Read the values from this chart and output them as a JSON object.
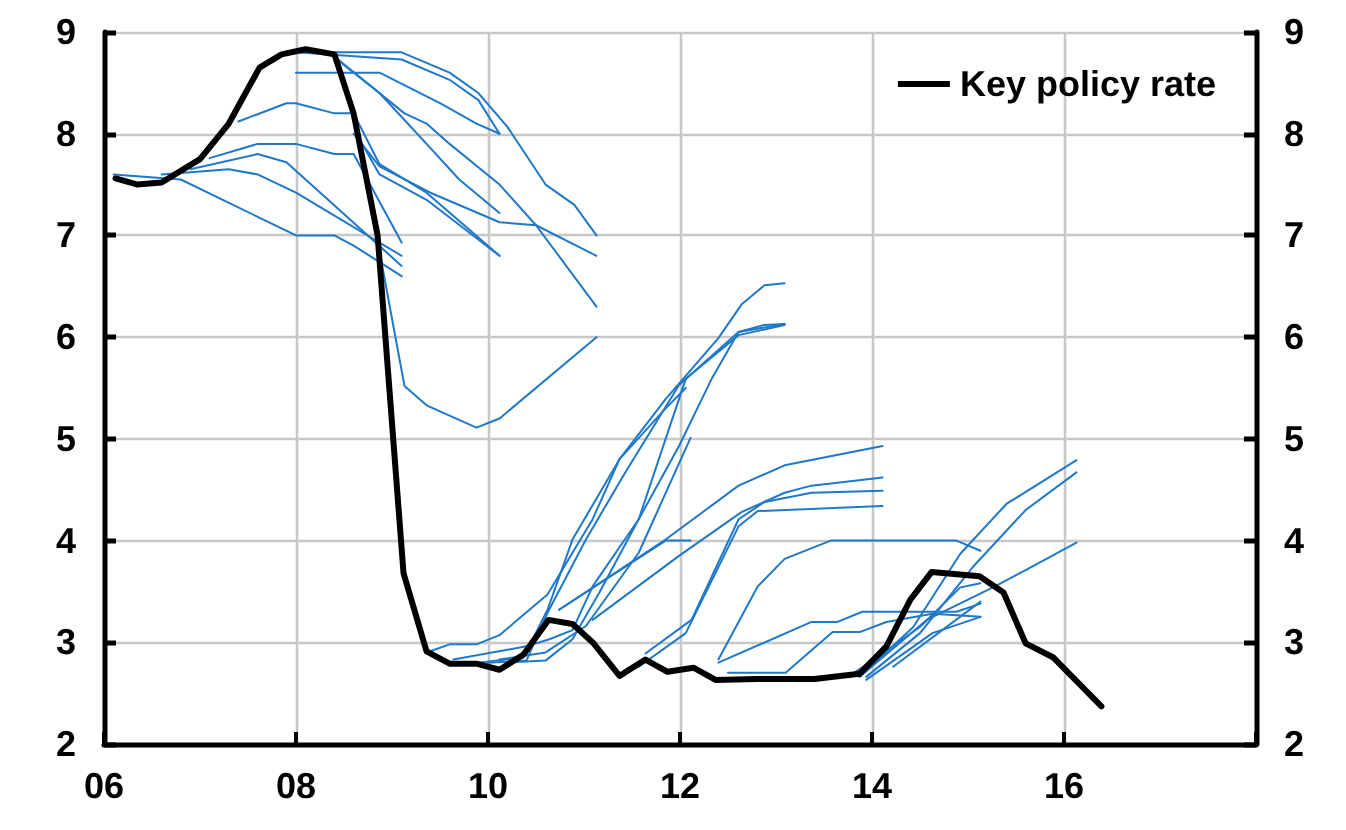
{
  "chart_data": {
    "type": "line",
    "xlim": [
      2006,
      2018
    ],
    "xticks": [
      {
        "value": 2006,
        "label": "06"
      },
      {
        "value": 2008,
        "label": "08"
      },
      {
        "value": 2010,
        "label": "10"
      },
      {
        "value": 2012,
        "label": "12"
      },
      {
        "value": 2014,
        "label": "14"
      },
      {
        "value": 2016,
        "label": "16"
      },
      {
        "value": 2018,
        "label": null
      }
    ],
    "ylim": [
      2,
      9
    ],
    "yticks": [
      2,
      3,
      4,
      5,
      6,
      7,
      8,
      9
    ],
    "y2lim": [
      2,
      9
    ],
    "y2ticks": [
      2,
      3,
      4,
      5,
      6,
      7,
      8,
      9
    ],
    "grid": true,
    "legend": "top right",
    "marker": "none",
    "line_style": "solid",
    "series": [
      {
        "color": "#1f78c8",
        "x": [
          2006.1,
          2006.8,
          2008.0,
          2008.4,
          2008.6,
          2009.1
        ],
        "values": [
          7.6,
          7.55,
          7.0,
          7.0,
          6.9,
          6.6
        ]
      },
      {
        "color": "#1f78c8",
        "x": [
          2006.6,
          2007.3,
          2007.6,
          2008.0,
          2009.1
        ],
        "values": [
          7.6,
          7.65,
          7.6,
          7.42,
          6.8
        ]
      },
      {
        "color": "#1f78c8",
        "x": [
          2006.9,
          2007.6,
          2007.9,
          2009.1
        ],
        "values": [
          7.65,
          7.8,
          7.72,
          6.7
        ]
      },
      {
        "color": "#1f78c8",
        "x": [
          2007.1,
          2007.6,
          2008.0,
          2008.4,
          2008.6,
          2009.1
        ],
        "values": [
          7.76,
          7.9,
          7.9,
          7.8,
          7.8,
          6.93
        ]
      },
      {
        "color": "#1f78c8",
        "x": [
          2007.4,
          2007.9,
          2008.0,
          2008.4,
          2008.6,
          2008.87,
          2009.36,
          2010.12
        ],
        "values": [
          8.12,
          8.3,
          8.3,
          8.2,
          8.2,
          7.7,
          7.42,
          6.8
        ]
      },
      {
        "color": "#1f78c8",
        "x": [
          2007.9,
          2009.1,
          2009.6,
          2009.9,
          2010.2,
          2010.6,
          2010.9,
          2011.13
        ],
        "values": [
          8.8,
          8.8,
          8.6,
          8.4,
          8.07,
          7.5,
          7.3,
          7.0
        ]
      },
      {
        "color": "#1f78c8",
        "x": [
          2008.0,
          2009.1,
          2009.6,
          2009.9,
          2010.12
        ],
        "values": [
          8.8,
          8.73,
          8.53,
          8.33,
          8.0
        ]
      },
      {
        "color": "#1f78c8",
        "x": [
          2008.0,
          2008.87,
          2009.5,
          2009.88,
          2010.12
        ],
        "values": [
          8.6,
          8.6,
          8.3,
          8.1,
          8.0
        ]
      },
      {
        "color": "#1f78c8",
        "x": [
          2008.4,
          2009.13,
          2009.36,
          2009.6,
          2010.12,
          2010.5,
          2011.13
        ],
        "values": [
          8.76,
          8.2,
          8.1,
          7.9,
          7.5,
          7.1,
          6.3
        ]
      },
      {
        "color": "#1f78c8",
        "x": [
          2008.4,
          2008.87,
          2009.36,
          2009.7,
          2010.12
        ],
        "values": [
          8.75,
          8.4,
          7.9,
          7.55,
          7.22
        ]
      },
      {
        "color": "#1f78c8",
        "x": [
          2008.6,
          2008.87,
          2009.4,
          2010.12,
          2010.5,
          2011.13
        ],
        "values": [
          8.0,
          7.68,
          7.42,
          7.13,
          7.1,
          6.8
        ]
      },
      {
        "color": "#1f78c8",
        "x": [
          2008.63,
          2008.87,
          2009.36,
          2010.12
        ],
        "values": [
          8.0,
          7.6,
          7.35,
          6.8
        ]
      },
      {
        "color": "#1f78c8",
        "x": [
          2008.8,
          2009.13,
          2009.36,
          2009.88,
          2010.12,
          2011.13
        ],
        "values": [
          7.2,
          5.52,
          5.33,
          5.11,
          5.2,
          6.0
        ]
      },
      {
        "color": "#1f78c8",
        "x": [
          2009.36,
          2009.6,
          2009.88,
          2010.12,
          2010.37,
          2010.62,
          2010.88,
          2011.09,
          2011.37,
          2011.85,
          2012.06
        ],
        "values": [
          2.9,
          2.98,
          2.98,
          3.07,
          3.27,
          3.47,
          3.88,
          4.21,
          4.8,
          5.3,
          5.5
        ]
      },
      {
        "color": "#1f78c8",
        "x": [
          2009.64,
          2010.4,
          2010.64,
          2010.88,
          2011.09,
          2011.57,
          2011.99,
          2012.33,
          2012.61,
          2013.09
        ],
        "values": [
          2.83,
          2.96,
          3.03,
          3.12,
          3.55,
          4.21,
          4.93,
          5.59,
          6.05,
          6.13
        ]
      },
      {
        "color": "#1f78c8",
        "x": [
          2009.9,
          2010.37,
          2010.62,
          2010.88,
          2011.37,
          2011.85,
          2012.4,
          2012.64,
          2012.88,
          2013.09
        ],
        "values": [
          2.8,
          2.85,
          3.32,
          4.01,
          4.8,
          5.39,
          5.99,
          6.32,
          6.51,
          6.53
        ]
      },
      {
        "color": "#1f78c8",
        "x": [
          2010.0,
          2010.4,
          2010.62,
          2011.02,
          2011.43,
          2011.99,
          2012.61,
          2012.88,
          2013.09
        ],
        "values": [
          2.8,
          2.82,
          3.29,
          4.01,
          4.67,
          5.53,
          6.05,
          6.12,
          6.13
        ]
      },
      {
        "color": "#1f78c8",
        "x": [
          2010.2,
          2010.6,
          2010.88,
          2011.16,
          2011.57,
          2012.06,
          2012.61,
          2013.09
        ],
        "values": [
          2.8,
          2.82,
          3.03,
          3.49,
          4.21,
          5.59,
          6.02,
          6.12
        ]
      },
      {
        "color": "#1f78c8",
        "x": [
          2010.12,
          2010.6,
          2011.02,
          2011.57,
          2012.11
        ],
        "values": [
          2.83,
          2.9,
          3.16,
          3.88,
          5.01
        ]
      },
      {
        "color": "#1f78c8",
        "x": [
          2010.74,
          2011.85,
          2012.11
        ],
        "values": [
          3.32,
          4.0,
          4.0
        ]
      },
      {
        "color": "#1f78c8",
        "x": [
          2010.74,
          2011.85,
          2012.61,
          2013.09,
          2014.11
        ],
        "values": [
          3.32,
          4.01,
          4.54,
          4.74,
          4.93
        ]
      },
      {
        "color": "#1f78c8",
        "x": [
          2011.09,
          2011.99,
          2012.64,
          2013.09,
          2013.37,
          2014.11
        ],
        "values": [
          3.22,
          3.85,
          4.28,
          4.47,
          4.54,
          4.62
        ]
      },
      {
        "color": "#1f78c8",
        "x": [
          2011.64,
          2012.12,
          2012.61,
          2012.88,
          2013.37,
          2014.11
        ],
        "values": [
          2.89,
          3.22,
          4.21,
          4.38,
          4.47,
          4.49
        ]
      },
      {
        "color": "#1f78c8",
        "x": [
          2011.57,
          2012.06,
          2012.61,
          2012.81,
          2014.11
        ],
        "values": [
          2.76,
          3.09,
          4.14,
          4.29,
          4.34
        ]
      },
      {
        "color": "#1f78c8",
        "x": [
          2012.4,
          2012.81,
          2013.09,
          2013.57,
          2014.88,
          2015.13
        ],
        "values": [
          2.83,
          3.55,
          3.82,
          4.0,
          4.0,
          3.9
        ]
      },
      {
        "color": "#1f78c8",
        "x": [
          2012.4,
          2013.37,
          2013.64,
          2013.9,
          2014.15,
          2014.88,
          2015.13
        ],
        "values": [
          2.8,
          3.2,
          3.2,
          3.3,
          3.3,
          3.3,
          3.38
        ]
      },
      {
        "color": "#1f78c8",
        "x": [
          2012.5,
          2013.1,
          2013.59,
          2013.87,
          2014.15,
          2014.63,
          2015.13
        ],
        "values": [
          2.7,
          2.7,
          3.1,
          3.1,
          3.2,
          3.28,
          3.25
        ]
      },
      {
        "color": "#1f78c8",
        "x": [
          2013.87,
          2014.43,
          2014.92,
          2015.4,
          2016.13
        ],
        "values": [
          2.66,
          3.15,
          3.87,
          4.36,
          4.79
        ]
      },
      {
        "color": "#1f78c8",
        "x": [
          2013.94,
          2014.5,
          2015.05,
          2015.6,
          2016.13
        ],
        "values": [
          2.66,
          3.09,
          3.74,
          4.3,
          4.67
        ]
      },
      {
        "color": "#1f78c8",
        "x": [
          2013.87,
          2014.57,
          2015.26,
          2015.6,
          2016.13
        ],
        "values": [
          2.66,
          3.22,
          3.54,
          3.71,
          3.98
        ]
      },
      {
        "color": "#1f78c8",
        "x": [
          2013.8,
          2014.5,
          2014.92,
          2015.13
        ],
        "values": [
          2.69,
          3.15,
          3.54,
          3.58
        ]
      },
      {
        "color": "#1f78c8",
        "x": [
          2013.94,
          2014.63,
          2015.13
        ],
        "values": [
          2.63,
          3.09,
          3.25
        ]
      },
      {
        "color": "#1f78c8",
        "x": [
          2014.22,
          2015.13
        ],
        "values": [
          2.76,
          3.4
        ]
      },
      {
        "name": "Key policy rate",
        "color": "#000000",
        "x": [
          2006.12,
          2006.35,
          2006.6,
          2007.0,
          2007.3,
          2007.62,
          2007.85,
          2008.1,
          2008.4,
          2008.6,
          2008.85,
          2009.12,
          2009.36,
          2009.6,
          2009.88,
          2010.12,
          2010.37,
          2010.63,
          2010.88,
          2011.1,
          2011.37,
          2011.64,
          2011.87,
          2012.14,
          2012.37,
          2012.8,
          2013.4,
          2013.87,
          2014.15,
          2014.4,
          2014.62,
          2015.12,
          2015.37,
          2015.6,
          2015.89,
          2016.39
        ],
        "values": [
          7.56,
          7.5,
          7.52,
          7.75,
          8.1,
          8.65,
          8.78,
          8.83,
          8.78,
          8.2,
          7.0,
          3.68,
          2.91,
          2.79,
          2.79,
          2.73,
          2.88,
          3.22,
          3.18,
          2.99,
          2.67,
          2.83,
          2.71,
          2.75,
          2.63,
          2.64,
          2.64,
          2.69,
          2.96,
          3.42,
          3.69,
          3.65,
          3.49,
          2.99,
          2.85,
          2.37
        ]
      }
    ]
  }
}
